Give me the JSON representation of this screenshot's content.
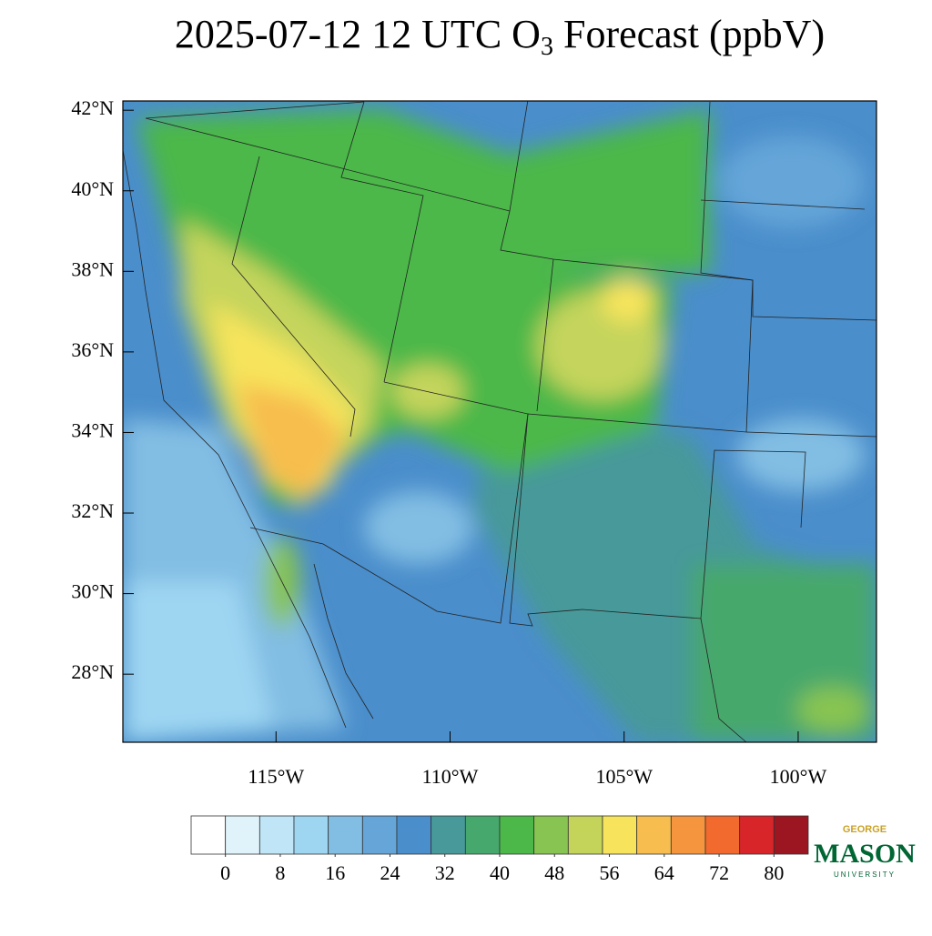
{
  "chart_data": {
    "type": "map",
    "title": {
      "before": "2025-07-12 12 UTC O",
      "subscript": "3",
      "after": " Forecast (ppbV)"
    },
    "xlim": [
      -119.4,
      -97.75
    ],
    "xticks": [
      {
        "value": -115,
        "label": "115°W"
      },
      {
        "value": -110,
        "label": "110°W"
      },
      {
        "value": -105,
        "label": "105°W"
      },
      {
        "value": -100,
        "label": "100°W"
      }
    ],
    "ylim": [
      26.31,
      42.23
    ],
    "yticks": [
      {
        "value": 28,
        "label": "28°N"
      },
      {
        "value": 30,
        "label": "30°N"
      },
      {
        "value": 32,
        "label": "32°N"
      },
      {
        "value": 34,
        "label": "34°N"
      },
      {
        "value": 36,
        "label": "36°N"
      },
      {
        "value": 38,
        "label": "38°N"
      },
      {
        "value": 40,
        "label": "40°N"
      },
      {
        "value": 42,
        "label": "42°N"
      }
    ],
    "colorbar": {
      "lim": [
        -5,
        85
      ],
      "colors": [
        "#ffffff",
        "#e0f3fb",
        "#bfe5f7",
        "#9ed6f2",
        "#82bde3",
        "#65a5d8",
        "#4a8ecb",
        "#47999a",
        "#46a86c",
        "#4bb849",
        "#88c451",
        "#c4d45b",
        "#f7e45c",
        "#f7bd4e",
        "#f5963f",
        "#f26a2d",
        "#d7252a",
        "#9b1620"
      ],
      "ticks": [
        0,
        8,
        16,
        24,
        32,
        40,
        48,
        56,
        64,
        72,
        80
      ]
    }
  },
  "logo": {
    "top": "GEORGE",
    "main": "MASON",
    "bottom": "UNIVERSITY"
  }
}
